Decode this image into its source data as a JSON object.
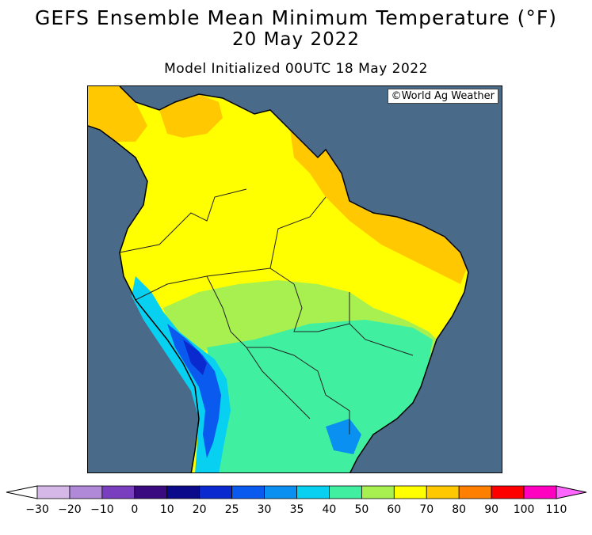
{
  "header": {
    "title": "GEFS Ensemble Mean Minimum Temperature (°F)",
    "valid_date": "20 May 2022",
    "init": "Model Initialized 00UTC 18 May 2022"
  },
  "map": {
    "region": "South America",
    "credit": "©World Ag Weather",
    "ocean_color": "#4a6a8a"
  },
  "legend": {
    "labels": [
      "-30",
      "-20",
      "-10",
      "0",
      "10",
      "20",
      "25",
      "30",
      "35",
      "40",
      "50",
      "60",
      "70",
      "80",
      "90",
      "100",
      "110"
    ],
    "colors": [
      "#ffffff",
      "#d6b8e8",
      "#b08ad8",
      "#7a3fbf",
      "#3a0a80",
      "#0a0a8a",
      "#0a2ad0",
      "#0a5af0",
      "#0a90f0",
      "#08d0f0",
      "#40f0a0",
      "#a8f050",
      "#ffff00",
      "#ffc800",
      "#ff8000",
      "#ff0000",
      "#ff00c0",
      "#ff66ff"
    ]
  }
}
